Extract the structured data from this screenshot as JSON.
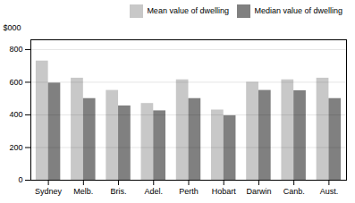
{
  "chart_data": {
    "type": "bar",
    "categories": [
      "Sydney",
      "Melb.",
      "Bris.",
      "Adel.",
      "Perth",
      "Hobart",
      "Darwin",
      "Canb.",
      "Aust."
    ],
    "series": [
      {
        "name": "Mean value of dwelling",
        "color": "#c8c8c8",
        "values": [
          730,
          625,
          550,
          470,
          615,
          430,
          600,
          615,
          625
        ]
      },
      {
        "name": "Median value of dwelling",
        "color": "#808080",
        "values": [
          595,
          500,
          455,
          425,
          500,
          395,
          550,
          548,
          500
        ]
      }
    ],
    "ylabel": "$000",
    "ylim": [
      0,
      860
    ],
    "yticks": [
      0,
      200,
      400,
      600,
      800
    ],
    "grid": true,
    "legend": "upper right"
  }
}
